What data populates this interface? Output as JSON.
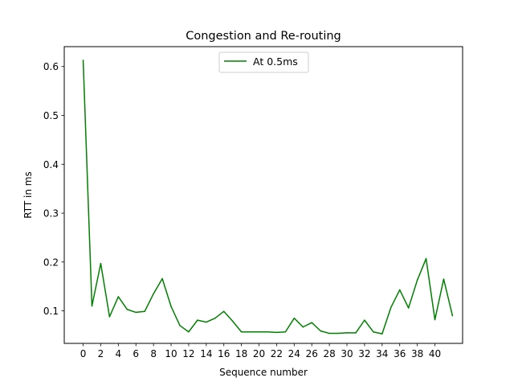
{
  "chart_data": {
    "type": "line",
    "title": "Congestion and Re-routing",
    "xlabel": "Sequence number",
    "ylabel": "RTT in ms",
    "xlim": [
      -2.15,
      43.15
    ],
    "ylim": [
      0.0335,
      0.6407
    ],
    "xticks": [
      0,
      2,
      4,
      6,
      8,
      10,
      12,
      14,
      16,
      18,
      20,
      22,
      24,
      26,
      28,
      30,
      32,
      34,
      36,
      38,
      40
    ],
    "yticks": [
      0.1,
      0.2,
      0.3,
      0.4,
      0.5,
      0.6
    ],
    "xtick_labels": [
      "0",
      "2",
      "4",
      "6",
      "8",
      "10",
      "12",
      "14",
      "16",
      "18",
      "20",
      "22",
      "24",
      "26",
      "28",
      "30",
      "32",
      "34",
      "36",
      "38",
      "40"
    ],
    "ytick_labels": [
      "0.1",
      "0.2",
      "0.3",
      "0.4",
      "0.5",
      "0.6"
    ],
    "grid": false,
    "legend_position": "top-center",
    "series": [
      {
        "name": "At 0.5ms",
        "color": "#008000",
        "x": [
          0,
          1,
          2,
          3,
          4,
          5,
          6,
          7,
          8,
          9,
          10,
          11,
          12,
          13,
          14,
          15,
          16,
          17,
          18,
          19,
          20,
          21,
          22,
          23,
          24,
          25,
          26,
          27,
          28,
          29,
          30,
          31,
          32,
          33,
          34,
          35,
          36,
          37,
          38,
          39,
          40,
          41,
          42
        ],
        "values": [
          0.613,
          0.11,
          0.197,
          0.088,
          0.129,
          0.103,
          0.097,
          0.099,
          0.135,
          0.166,
          0.109,
          0.07,
          0.057,
          0.081,
          0.077,
          0.085,
          0.099,
          0.079,
          0.057,
          0.057,
          0.057,
          0.057,
          0.056,
          0.057,
          0.085,
          0.067,
          0.076,
          0.059,
          0.054,
          0.054,
          0.055,
          0.055,
          0.081,
          0.057,
          0.053,
          0.107,
          0.143,
          0.106,
          0.163,
          0.207,
          0.082,
          0.165,
          0.09
        ]
      }
    ]
  }
}
